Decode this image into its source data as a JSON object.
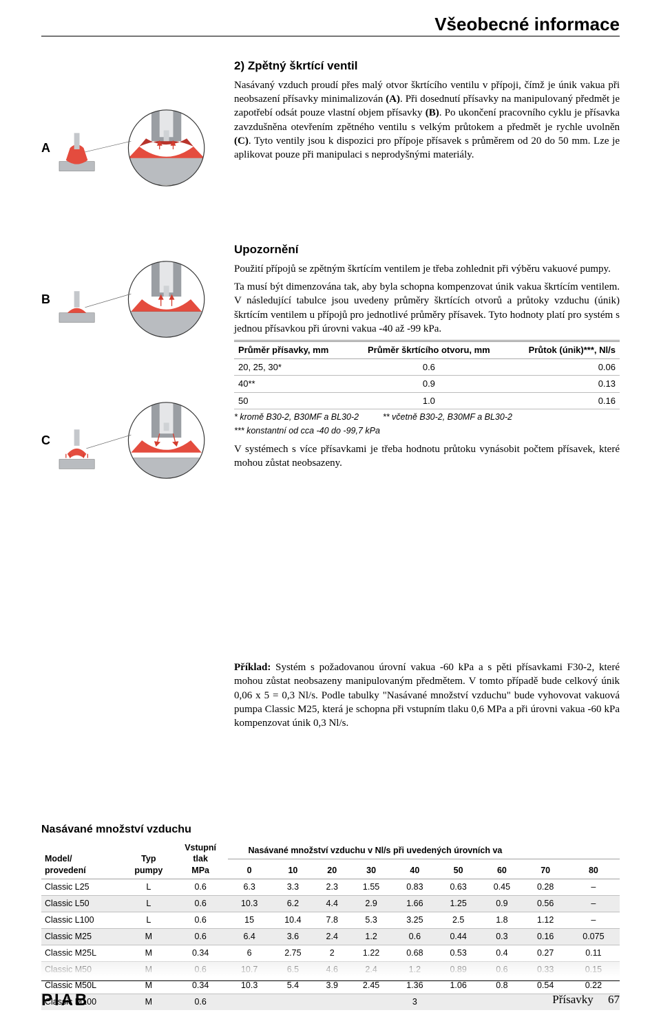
{
  "page_title": "Všeobecné informace",
  "diagrams": [
    "A",
    "B",
    "C"
  ],
  "section2": {
    "heading": "2) Zpětný škrtící ventil",
    "p1_a": "Nasávaný vzduch proudí přes malý otvor škrtícího ventilu v přípoji, čímž je únik vakua při neobsazení přísavky minimalizován ",
    "p1_b": "(A)",
    "p1_c": ". Při dosednutí přísavky na manipulovaný předmět je zapotřebí odsát pouze vlastní objem přísavky ",
    "p1_d": "(B)",
    "p1_e": ". Po ukončení pracovního cyklu je přísavka zavzdušněna otevřením zpětného ventilu s velkým průtokem a předmět je rychle uvolněn ",
    "p1_f": "(C)",
    "p1_g": ". Tyto ventily jsou k dispozici pro přípoje přísavek s průměrem od 20 do 50 mm. Lze je aplikovat pouze při manipulaci s neprodyšnými materiály."
  },
  "warning": {
    "heading": "Upozornění",
    "p1": "Použití přípojů se zpětným škrtícím ventilem je třeba zohlednit při výběru vakuové pumpy.",
    "p2": "Ta musí být dimenzována tak, aby byla schopna kompenzovat únik vakua škrtícím ventilem. V následující tabulce jsou uvedeny průměry škrtících otvorů a průtoky vzduchu (únik) škrtícím ventilem u přípojů pro jednotlivé průměry přísavek. Tyto hodnoty platí pro systém s jednou přísavkou při úrovni vakua -40 až -99 kPa."
  },
  "small_table": {
    "headers": [
      "Průměr přísavky, mm",
      "Průměr škrtícího otvoru, mm",
      "Průtok (únik)***, Nl/s"
    ],
    "rows": [
      [
        "20, 25, 30*",
        "0.6",
        "0.06"
      ],
      [
        "40**",
        "0.9",
        "0.13"
      ],
      [
        "50",
        "1.0",
        "0.16"
      ]
    ],
    "note1_a": "* kromě B30-2, B30MF a BL30-2",
    "note1_b": "** včetně B30-2, B30MF a BL30-2",
    "note2": "*** konstantní od cca -40 do -99,7 kPa"
  },
  "after_table": "V systémech s více přísavkami je třeba hodnotu průtoku vynásobit počtem přísavek, které mohou zůstat neobsazeny.",
  "example": {
    "label": "Příklad:",
    "text": " Systém s požadovanou úrovní vakua -60 kPa a s pěti přísavkami F30-2, které mohou zůstat neobsazeny manipulovaným předmětem. V tomto případě bude celkový únik 0,06 x 5 = 0,3 Nl/s. Podle tabulky \"Nasávané množství vzduchu\" bude vyhovovat vakuová pumpa Classic M25, která je schopna při vstupním tlaku 0,6 MPa a při úrovni vakua -60 kPa kompenzovat únik 0,3 Nl/s."
  },
  "big_table": {
    "title": "Nasávané množství vzduchu",
    "head_left": [
      "Model/\nprovedení",
      "Typ\npumpy",
      "Vstupní\ntlak\nMPa"
    ],
    "span_header": "Nasávané množství vzduchu v Nl/s při uvedených úrovních va",
    "levels": [
      "0",
      "10",
      "20",
      "30",
      "40",
      "50",
      "60",
      "70",
      "80"
    ],
    "rows": [
      {
        "shade": false,
        "cells": [
          "Classic L25",
          "L",
          "0.6",
          "6.3",
          "3.3",
          "2.3",
          "1.55",
          "0.83",
          "0.63",
          "0.45",
          "0.28",
          "–"
        ]
      },
      {
        "shade": true,
        "cells": [
          "Classic L50",
          "L",
          "0.6",
          "10.3",
          "6.2",
          "4.4",
          "2.9",
          "1.66",
          "1.25",
          "0.9",
          "0.56",
          "–"
        ]
      },
      {
        "shade": false,
        "cells": [
          "Classic L100",
          "L",
          "0.6",
          "15",
          "10.4",
          "7.8",
          "5.3",
          "3.25",
          "2.5",
          "1.8",
          "1.12",
          "–"
        ]
      },
      {
        "shade": true,
        "cells": [
          "Classic M25",
          "M",
          "0.6",
          "6.4",
          "3.6",
          "2.4",
          "1.2",
          "0.6",
          "0.44",
          "0.3",
          "0.16",
          "0.075"
        ]
      },
      {
        "shade": false,
        "cells": [
          "Classic M25L",
          "M",
          "0.34",
          "6",
          "2.75",
          "2",
          "1.22",
          "0.68",
          "0.53",
          "0.4",
          "0.27",
          "0.11"
        ]
      },
      {
        "shade": true,
        "cells": [
          "Classic M50",
          "M",
          "0.6",
          "10.7",
          "6.5",
          "4.6",
          "2.4",
          "1.2",
          "0.89",
          "0.6",
          "0.33",
          "0.15"
        ]
      },
      {
        "shade": false,
        "cells": [
          "Classic M50L",
          "M",
          "0.34",
          "10.3",
          "5.4",
          "3.9",
          "2.45",
          "1.36",
          "1.06",
          "0.8",
          "0.54",
          "0.22"
        ]
      },
      {
        "shade": true,
        "cells": [
          "Classic M100",
          "M",
          "0.6",
          "",
          "",
          "",
          "",
          "3",
          "",
          "",
          "",
          ""
        ]
      }
    ]
  },
  "footer": {
    "logo": "PIAB",
    "label": "Přísavky",
    "page": "67"
  },
  "colors": {
    "diagram_red": "#e44c3e",
    "diagram_grey": "#9a9ea3",
    "rule": "#000000"
  }
}
